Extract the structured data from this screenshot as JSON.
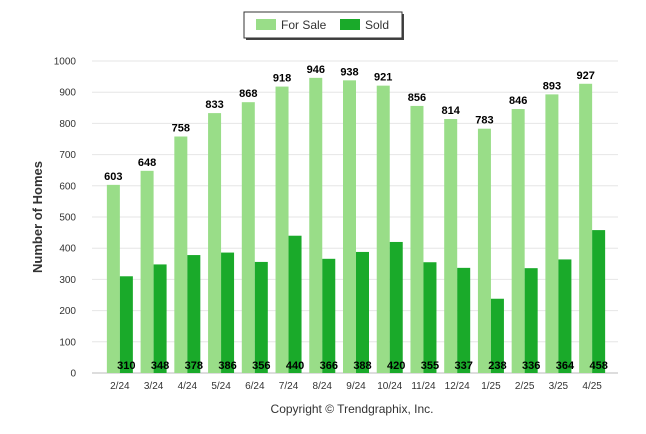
{
  "chart_data": {
    "type": "bar",
    "ylabel": "Number of Homes",
    "xlabel": "",
    "ylim": [
      0,
      1000
    ],
    "yticks": [
      0,
      100,
      200,
      300,
      400,
      500,
      600,
      700,
      800,
      900,
      1000
    ],
    "grid": true,
    "legend_position": "top-center",
    "categories": [
      "2/24",
      "3/24",
      "4/24",
      "5/24",
      "6/24",
      "7/24",
      "8/24",
      "9/24",
      "10/24",
      "11/24",
      "12/24",
      "1/25",
      "2/25",
      "3/25",
      "4/25"
    ],
    "series": [
      {
        "name": "For Sale",
        "color": "#99dd88",
        "values": [
          603,
          648,
          758,
          833,
          868,
          918,
          946,
          938,
          921,
          856,
          814,
          783,
          846,
          893,
          927
        ]
      },
      {
        "name": "Sold",
        "color": "#1aaa2a",
        "values": [
          310,
          348,
          378,
          386,
          356,
          440,
          366,
          388,
          420,
          355,
          337,
          238,
          336,
          364,
          458
        ]
      }
    ],
    "footnote": "Copyright © Trendgraphix, Inc."
  }
}
